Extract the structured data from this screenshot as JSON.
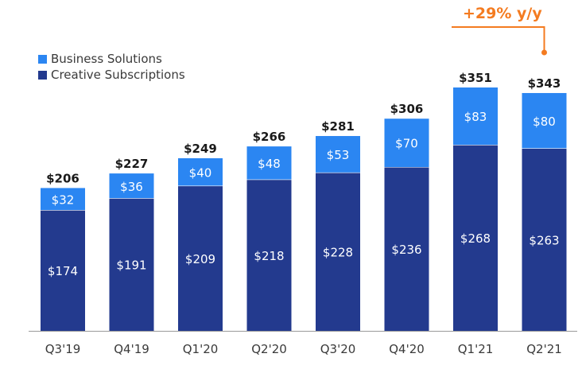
{
  "chart_data": {
    "type": "bar",
    "stacked": true,
    "categories": [
      "Q3'19",
      "Q4'19",
      "Q1'20",
      "Q2'20",
      "Q3'20",
      "Q4'20",
      "Q1'21",
      "Q2'21"
    ],
    "series": [
      {
        "name": "Creative Subscriptions",
        "color": "#233a8e",
        "values": [
          174,
          191,
          209,
          218,
          228,
          236,
          268,
          263
        ],
        "labels": [
          "$174",
          "$191",
          "$209",
          "$218",
          "$228",
          "$236",
          "$268",
          "$263"
        ]
      },
      {
        "name": "Business Solutions",
        "color": "#2b86f2",
        "values": [
          32,
          36,
          40,
          48,
          53,
          70,
          83,
          80
        ],
        "labels": [
          "$32",
          "$36",
          "$40",
          "$48",
          "$53",
          "$70",
          "$83",
          "$80"
        ]
      }
    ],
    "totals": [
      206,
      227,
      249,
      266,
      281,
      306,
      351,
      343
    ],
    "total_labels": [
      "$206",
      "$227",
      "$249",
      "$266",
      "$281",
      "$306",
      "$351",
      "$343"
    ],
    "annotation": {
      "text": "+29% y/y",
      "color": "#f47b20",
      "from": "Q1'21",
      "to": "Q2'21"
    },
    "legend_position": "top-left",
    "ylim": [
      0,
      351
    ],
    "grid": false
  }
}
